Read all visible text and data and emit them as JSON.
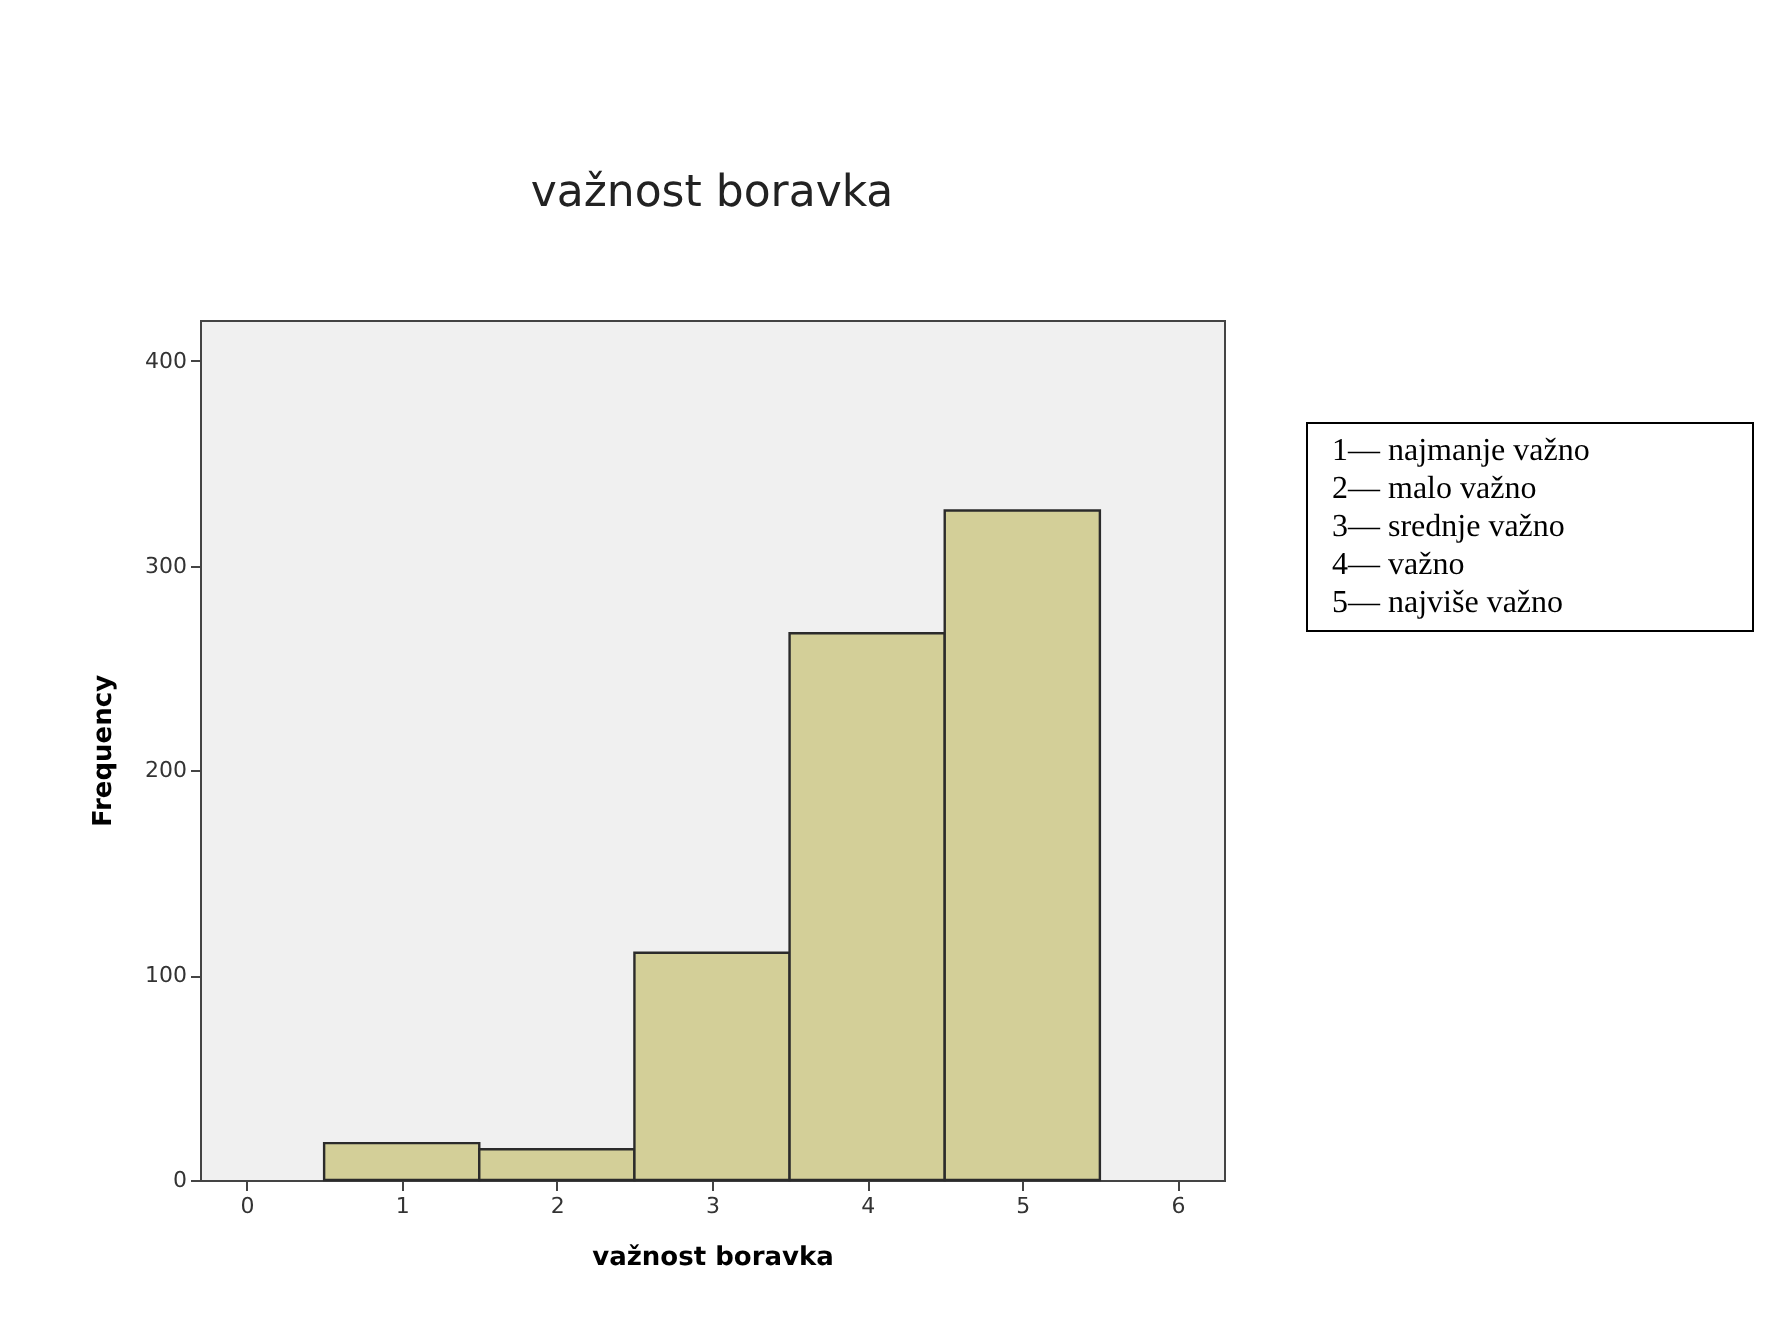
{
  "chart_data": {
    "type": "histogram",
    "title": "važnost boravka",
    "xlabel": "važnost boravka",
    "ylabel": "Frequency",
    "bins": [
      0.5,
      1.5,
      2.5,
      3.5,
      4.5,
      5.5
    ],
    "values": [
      18,
      15,
      111,
      267,
      327
    ],
    "color": "#d3cf98",
    "xlim": [
      -0.3,
      6.3
    ],
    "xticks": [
      0,
      1,
      2,
      3,
      4,
      5,
      6
    ],
    "ylim": [
      0,
      420
    ],
    "yticks": [
      0,
      100,
      200,
      300,
      400
    ],
    "grid": false,
    "annotations": [
      "1— najmanje važno",
      "2— malo važno",
      "3— srednje važno",
      "4— važno",
      "5— najviše važno"
    ]
  }
}
